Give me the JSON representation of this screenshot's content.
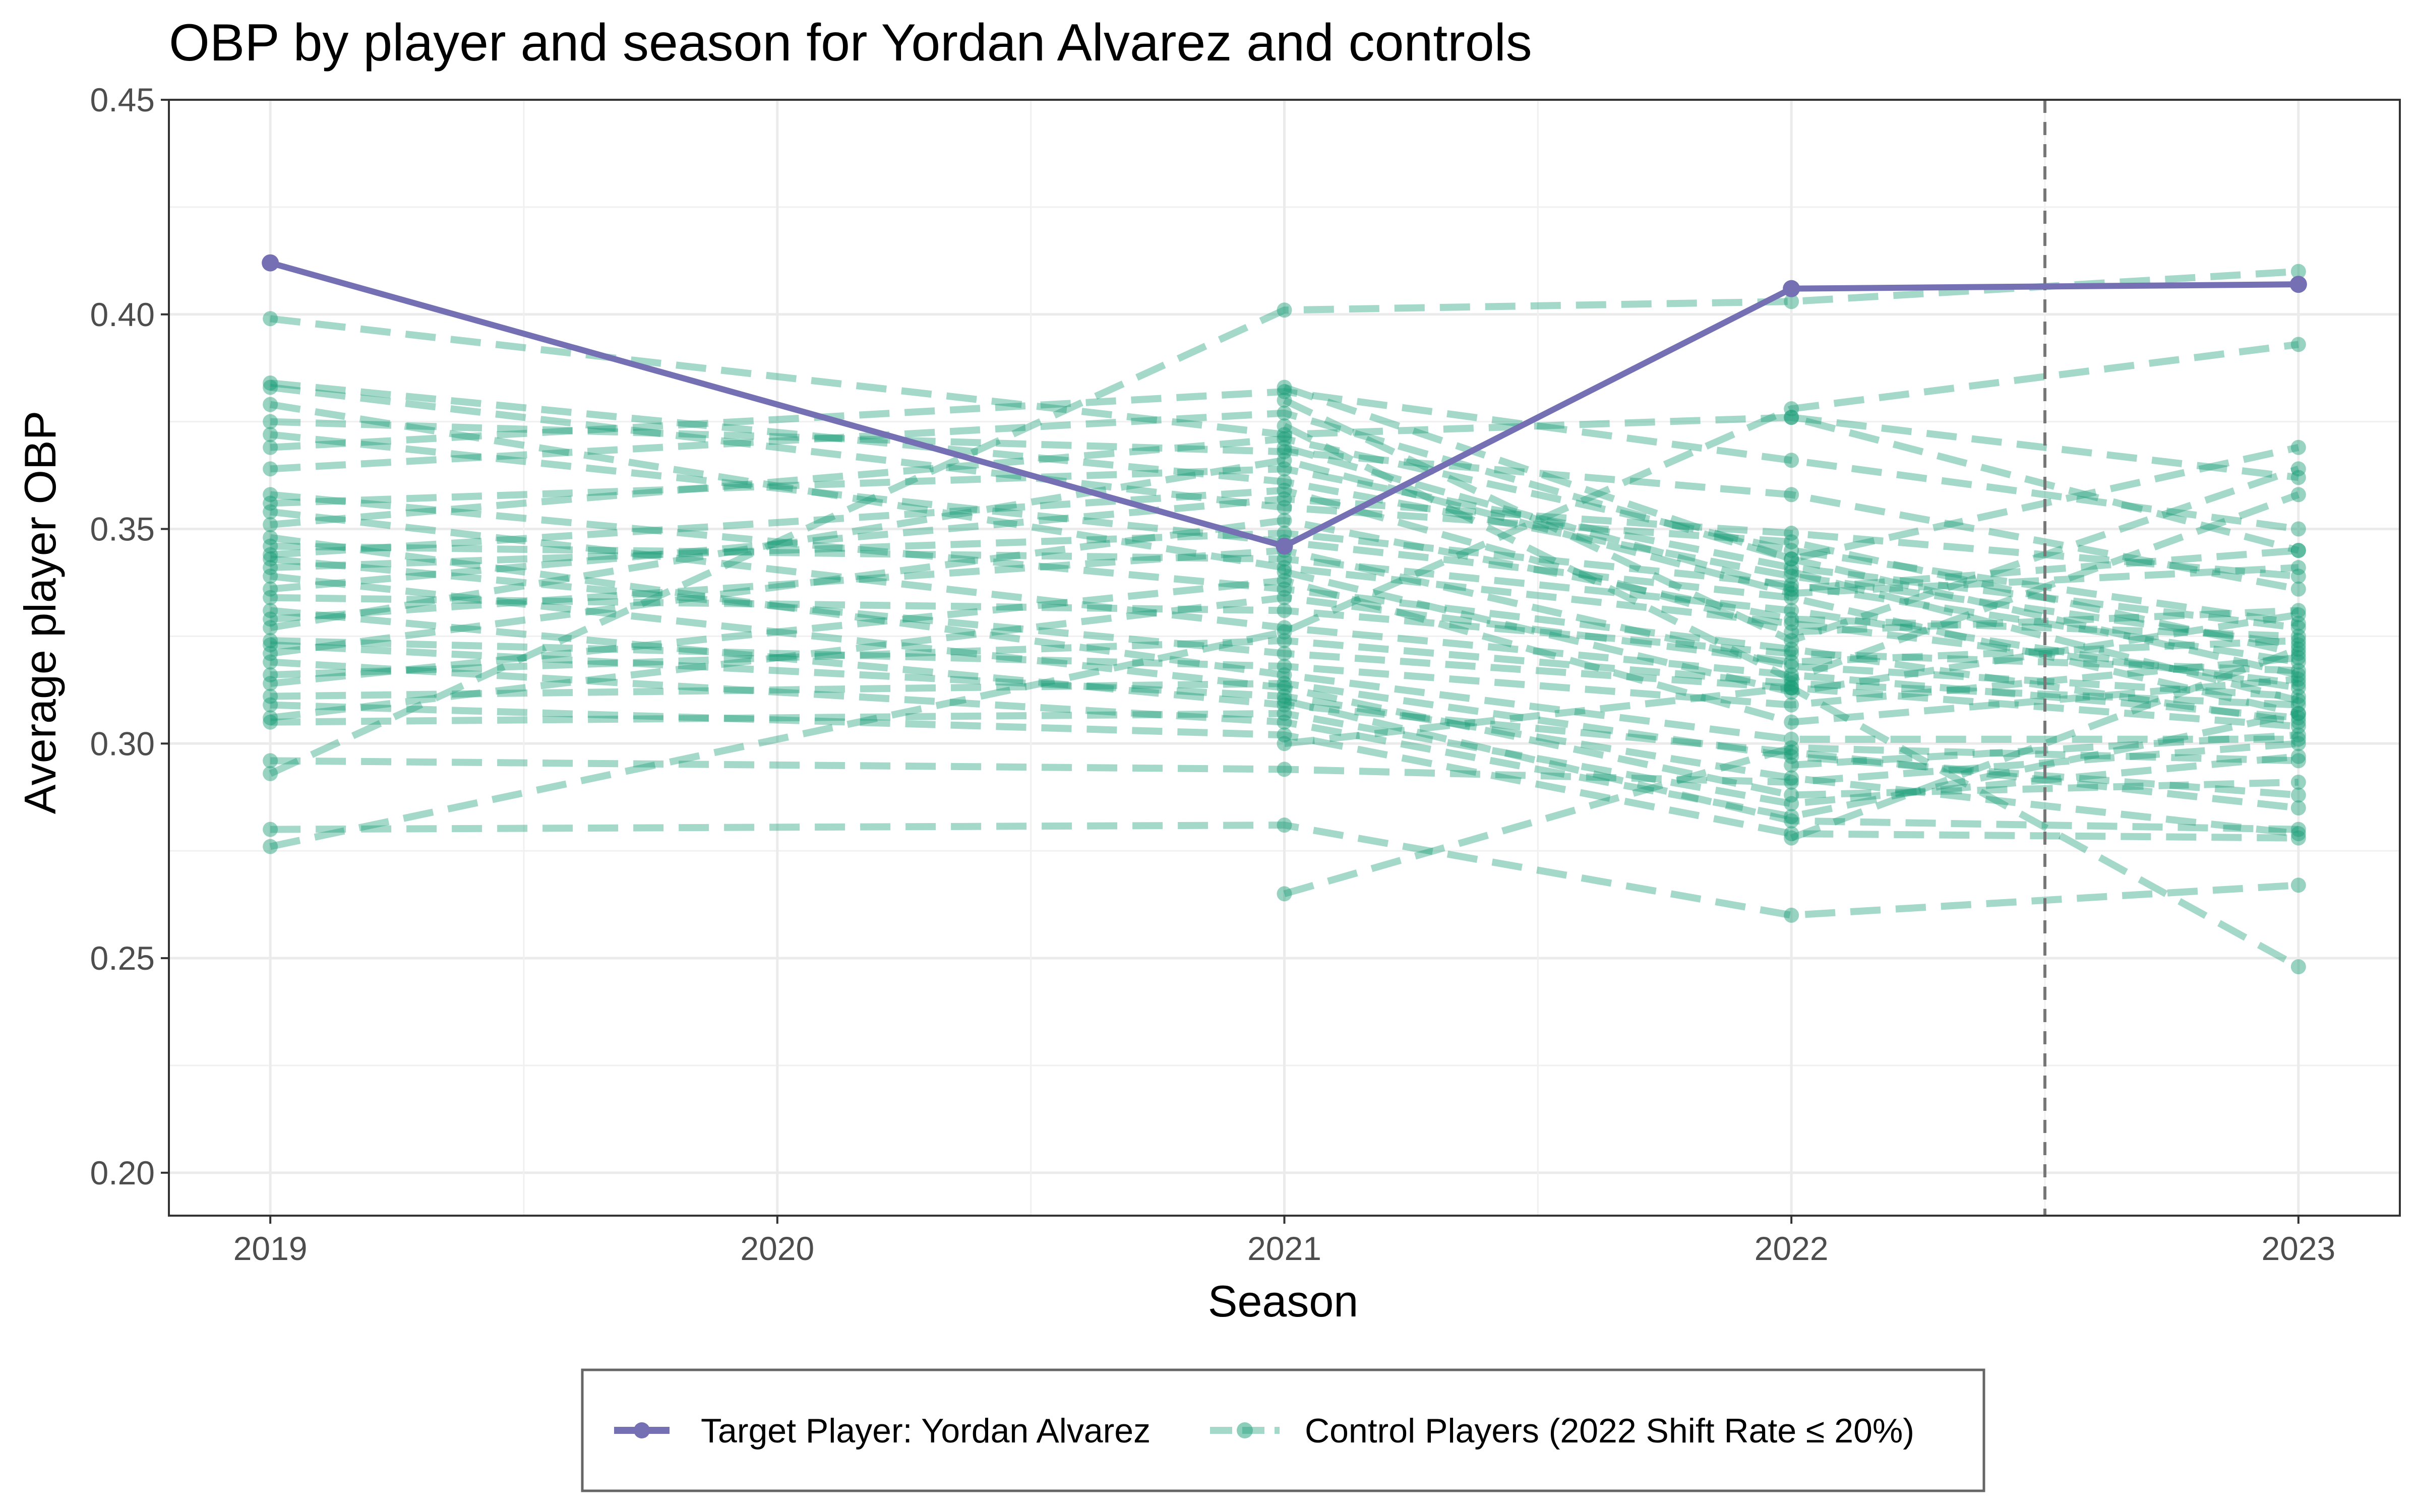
{
  "chart_data": {
    "type": "line",
    "title": "OBP by player and season for Yordan Alvarez and controls",
    "xlabel": "Season",
    "ylabel": "Average player OBP",
    "x_ticks": [
      "2019",
      "2020",
      "2021",
      "2022",
      "2023"
    ],
    "y_ticks": [
      "0.20",
      "0.25",
      "0.30",
      "0.35",
      "0.40",
      "0.45"
    ],
    "xlim": [
      2018.8,
      2023.2
    ],
    "ylim": [
      0.19,
      0.45
    ],
    "grid": true,
    "legend_position": "bottom",
    "reference_line": {
      "x": 2022.5,
      "style": "dashed"
    },
    "target": {
      "name": "Target Player: Yordan Alvarez",
      "color": "#7570b3",
      "points": [
        [
          2019,
          0.412
        ],
        [
          2021,
          0.346
        ],
        [
          2022,
          0.406
        ],
        [
          2023,
          0.407
        ]
      ]
    },
    "control_legend_label": "Control Players (2022 Shift Rate ≤ 20%)",
    "control_color": "#1b9e77",
    "controls": [
      [
        [
          2019,
          0.399
        ],
        [
          2021,
          0.372
        ],
        [
          2022,
          0.376
        ],
        [
          2023,
          0.345
        ]
      ],
      [
        [
          2019,
          0.384
        ],
        [
          2021,
          0.361
        ],
        [
          2022,
          0.339
        ],
        [
          2023,
          0.323
        ]
      ],
      [
        [
          2019,
          0.383
        ],
        [
          2021,
          0.355
        ],
        [
          2022,
          0.347
        ],
        [
          2023,
          0.321
        ]
      ],
      [
        [
          2019,
          0.379
        ],
        [
          2021,
          0.341
        ],
        [
          2022,
          0.328
        ],
        [
          2023,
          0.314
        ]
      ],
      [
        [
          2019,
          0.375
        ],
        [
          2021,
          0.368
        ],
        [
          2022,
          0.358
        ],
        [
          2023,
          0.336
        ]
      ],
      [
        [
          2019,
          0.372
        ],
        [
          2021,
          0.347
        ],
        [
          2022,
          0.334
        ],
        [
          2023,
          0.307
        ]
      ],
      [
        [
          2019,
          0.369
        ],
        [
          2021,
          0.382
        ],
        [
          2022,
          0.366
        ],
        [
          2023,
          0.35
        ]
      ],
      [
        [
          2019,
          0.364
        ],
        [
          2021,
          0.377
        ],
        [
          2022,
          0.343
        ],
        [
          2023,
          0.316
        ]
      ],
      [
        [
          2019,
          0.358
        ],
        [
          2021,
          0.336
        ],
        [
          2022,
          0.322
        ],
        [
          2023,
          0.305
        ]
      ],
      [
        [
          2019,
          0.356
        ],
        [
          2021,
          0.364
        ],
        [
          2022,
          0.341
        ],
        [
          2023,
          0.327
        ]
      ],
      [
        [
          2019,
          0.354
        ],
        [
          2021,
          0.327
        ],
        [
          2022,
          0.316
        ],
        [
          2023,
          0.306
        ]
      ],
      [
        [
          2019,
          0.351
        ],
        [
          2021,
          0.371
        ],
        [
          2022,
          0.345
        ],
        [
          2023,
          0.328
        ]
      ],
      [
        [
          2019,
          0.348
        ],
        [
          2021,
          0.316
        ],
        [
          2022,
          0.301
        ],
        [
          2023,
          0.301
        ]
      ],
      [
        [
          2019,
          0.346
        ],
        [
          2021,
          0.343
        ],
        [
          2022,
          0.331
        ],
        [
          2023,
          0.313
        ]
      ],
      [
        [
          2019,
          0.344
        ],
        [
          2021,
          0.359
        ],
        [
          2022,
          0.326
        ],
        [
          2023,
          0.331
        ]
      ],
      [
        [
          2019,
          0.343
        ],
        [
          2021,
          0.321
        ],
        [
          2022,
          0.313
        ],
        [
          2023,
          0.304
        ]
      ],
      [
        [
          2019,
          0.341
        ],
        [
          2021,
          0.349
        ],
        [
          2022,
          0.337
        ],
        [
          2023,
          0.319
        ]
      ],
      [
        [
          2019,
          0.339
        ],
        [
          2021,
          0.313
        ],
        [
          2022,
          0.288
        ],
        [
          2023,
          0.291
        ]
      ],
      [
        [
          2019,
          0.336
        ],
        [
          2021,
          0.357
        ],
        [
          2022,
          0.349
        ],
        [
          2023,
          0.339
        ]
      ],
      [
        [
          2019,
          0.334
        ],
        [
          2021,
          0.331
        ],
        [
          2022,
          0.321
        ],
        [
          2023,
          0.317
        ]
      ],
      [
        [
          2019,
          0.331
        ],
        [
          2021,
          0.309
        ],
        [
          2022,
          0.298
        ],
        [
          2023,
          0.285
        ]
      ],
      [
        [
          2019,
          0.329
        ],
        [
          2021,
          0.345
        ],
        [
          2022,
          0.318
        ],
        [
          2023,
          0.311
        ]
      ],
      [
        [
          2019,
          0.327
        ],
        [
          2021,
          0.366
        ],
        [
          2022,
          0.335
        ],
        [
          2023,
          0.341
        ]
      ],
      [
        [
          2019,
          0.324
        ],
        [
          2021,
          0.318
        ],
        [
          2022,
          0.309
        ],
        [
          2023,
          0.32
        ]
      ],
      [
        [
          2019,
          0.323
        ],
        [
          2021,
          0.311
        ],
        [
          2022,
          0.292
        ],
        [
          2023,
          0.279
        ]
      ],
      [
        [
          2019,
          0.321
        ],
        [
          2021,
          0.352
        ],
        [
          2022,
          0.329
        ],
        [
          2023,
          0.325
        ]
      ],
      [
        [
          2019,
          0.319
        ],
        [
          2021,
          0.305
        ],
        [
          2022,
          0.283
        ],
        [
          2023,
          0.307
        ]
      ],
      [
        [
          2019,
          0.316
        ],
        [
          2021,
          0.324
        ],
        [
          2022,
          0.314
        ],
        [
          2023,
          0.309
        ]
      ],
      [
        [
          2019,
          0.314
        ],
        [
          2021,
          0.338
        ],
        [
          2022,
          0.305
        ],
        [
          2023,
          0.315
        ]
      ],
      [
        [
          2019,
          0.311
        ],
        [
          2021,
          0.314
        ],
        [
          2022,
          0.297
        ],
        [
          2023,
          0.288
        ]
      ],
      [
        [
          2019,
          0.309
        ],
        [
          2021,
          0.302
        ],
        [
          2022,
          0.279
        ],
        [
          2023,
          0.278
        ]
      ],
      [
        [
          2019,
          0.306
        ],
        [
          2021,
          0.334
        ],
        [
          2022,
          0.319
        ],
        [
          2023,
          0.324
        ]
      ],
      [
        [
          2019,
          0.305
        ],
        [
          2021,
          0.307
        ],
        [
          2022,
          0.286
        ],
        [
          2023,
          0.297
        ]
      ],
      [
        [
          2019,
          0.296
        ],
        [
          2021,
          0.294
        ],
        [
          2022,
          0.291
        ],
        [
          2023,
          0.3
        ]
      ],
      [
        [
          2019,
          0.293
        ],
        [
          2021,
          0.401
        ],
        [
          2022,
          0.403
        ],
        [
          2023,
          0.41
        ]
      ],
      [
        [
          2019,
          0.28
        ],
        [
          2021,
          0.281
        ],
        [
          2022,
          0.26
        ],
        [
          2023,
          0.267
        ]
      ],
      [
        [
          2019,
          0.276
        ],
        [
          2021,
          0.326
        ],
        [
          2022,
          0.378
        ],
        [
          2023,
          0.393
        ]
      ],
      [
        [
          2021,
          0.383
        ],
        [
          2022,
          0.343
        ],
        [
          2023,
          0.369
        ]
      ],
      [
        [
          2021,
          0.38
        ],
        [
          2022,
          0.324
        ],
        [
          2023,
          0.364
        ]
      ],
      [
        [
          2021,
          0.374
        ],
        [
          2022,
          0.315
        ],
        [
          2023,
          0.358
        ]
      ],
      [
        [
          2021,
          0.369
        ],
        [
          2022,
          0.336
        ],
        [
          2023,
          0.345
        ]
      ],
      [
        [
          2021,
          0.34
        ],
        [
          2022,
          0.312
        ],
        [
          2023,
          0.33
        ]
      ],
      [
        [
          2021,
          0.31
        ],
        [
          2022,
          0.282
        ],
        [
          2023,
          0.28
        ]
      ],
      [
        [
          2021,
          0.3
        ],
        [
          2022,
          0.313
        ],
        [
          2023,
          0.248
        ]
      ],
      [
        [
          2021,
          0.265
        ],
        [
          2022,
          0.299
        ],
        [
          2023,
          0.296
        ]
      ],
      [
        [
          2022,
          0.376
        ],
        [
          2023,
          0.362
        ]
      ],
      [
        [
          2022,
          0.34
        ],
        [
          2023,
          0.31
        ]
      ],
      [
        [
          2022,
          0.295
        ],
        [
          2023,
          0.302
        ]
      ],
      [
        [
          2022,
          0.278
        ],
        [
          2023,
          0.322
        ]
      ]
    ]
  }
}
